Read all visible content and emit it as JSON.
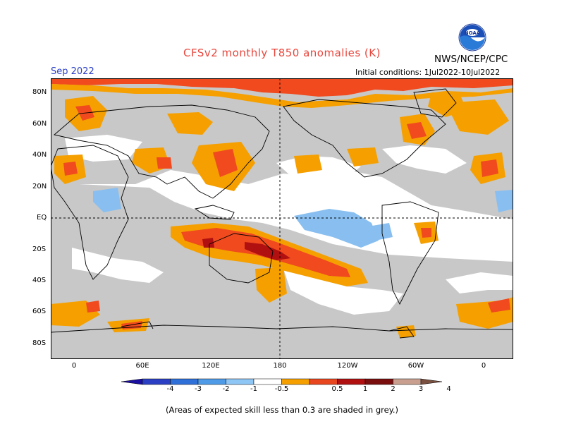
{
  "title": "CFSv2 monthly T850 anomalies (K)",
  "agency": "NWS/NCEP/CPC",
  "logo_text": "NOAA",
  "forecast_month": "Sep 2022",
  "initial_conditions": "Initial conditions: 1Jul2022-10Jul2022",
  "footnote": "(Areas of expected skill less than 0.3 are shaded in grey.)",
  "lat_labels": [
    "80N",
    "60N",
    "40N",
    "20N",
    "EQ",
    "20S",
    "40S",
    "60S",
    "80S"
  ],
  "lon_labels": [
    "0",
    "60E",
    "120E",
    "180",
    "120W",
    "60W",
    "0"
  ],
  "colorbar": {
    "labels": [
      "-4",
      "-3",
      "-2",
      "-1",
      "-0.5",
      "0.5",
      "1",
      "2",
      "3",
      "4"
    ],
    "colors": [
      "#1a0fa0",
      "#2b3fc4",
      "#2f6fd8",
      "#4f9be8",
      "#8ec6f5",
      "#ffffff",
      "#f5a000",
      "#e8461e",
      "#b01010",
      "#7a0e0e",
      "#c9a090",
      "#7a5040"
    ]
  },
  "colors": {
    "no_skill_grey": "#c8c8c8",
    "warm_light": "#f5a000",
    "warm_mid": "#f04a1e",
    "warm_dark": "#b01010",
    "cool_light": "#88bff0",
    "cool_mid": "#4f9be8"
  }
}
